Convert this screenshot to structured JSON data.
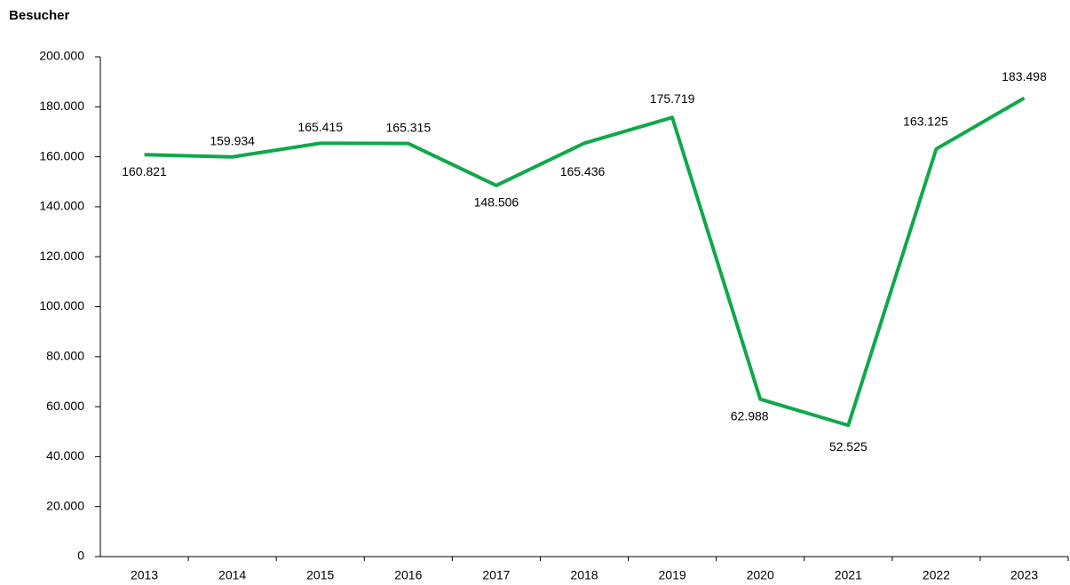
{
  "chart_data": {
    "type": "line",
    "title": "Besucher",
    "categories": [
      "2013",
      "2014",
      "2015",
      "2016",
      "2017",
      "2018",
      "2019",
      "2020",
      "2021",
      "2022",
      "2023"
    ],
    "values": [
      160821,
      159934,
      165415,
      165315,
      148506,
      165436,
      175719,
      62988,
      52525,
      163125,
      183498
    ],
    "value_labels": [
      "160.821",
      "159.934",
      "165.415",
      "165.315",
      "148.506",
      "165.436",
      "175.719",
      "62.988",
      "52.525",
      "163.125",
      "183.498"
    ],
    "color": "#0fa84a",
    "ylim": [
      0,
      200000
    ],
    "yticks": [
      0,
      {
        "value": 20000,
        "label": "20.000"
      },
      {
        "value": 40000,
        "label": "40.000"
      },
      {
        "value": 60000,
        "label": "60.000"
      },
      {
        "value": 80000,
        "label": "80.000"
      },
      {
        "value": 100000,
        "label": "100.000"
      },
      {
        "value": 120000,
        "label": "120.000"
      },
      {
        "value": 140000,
        "label": "140.000"
      },
      {
        "value": 160000,
        "label": "160.000"
      },
      {
        "value": 180000,
        "label": "180.000"
      },
      {
        "value": 200000,
        "label": "200.000"
      }
    ],
    "grid": false
  }
}
